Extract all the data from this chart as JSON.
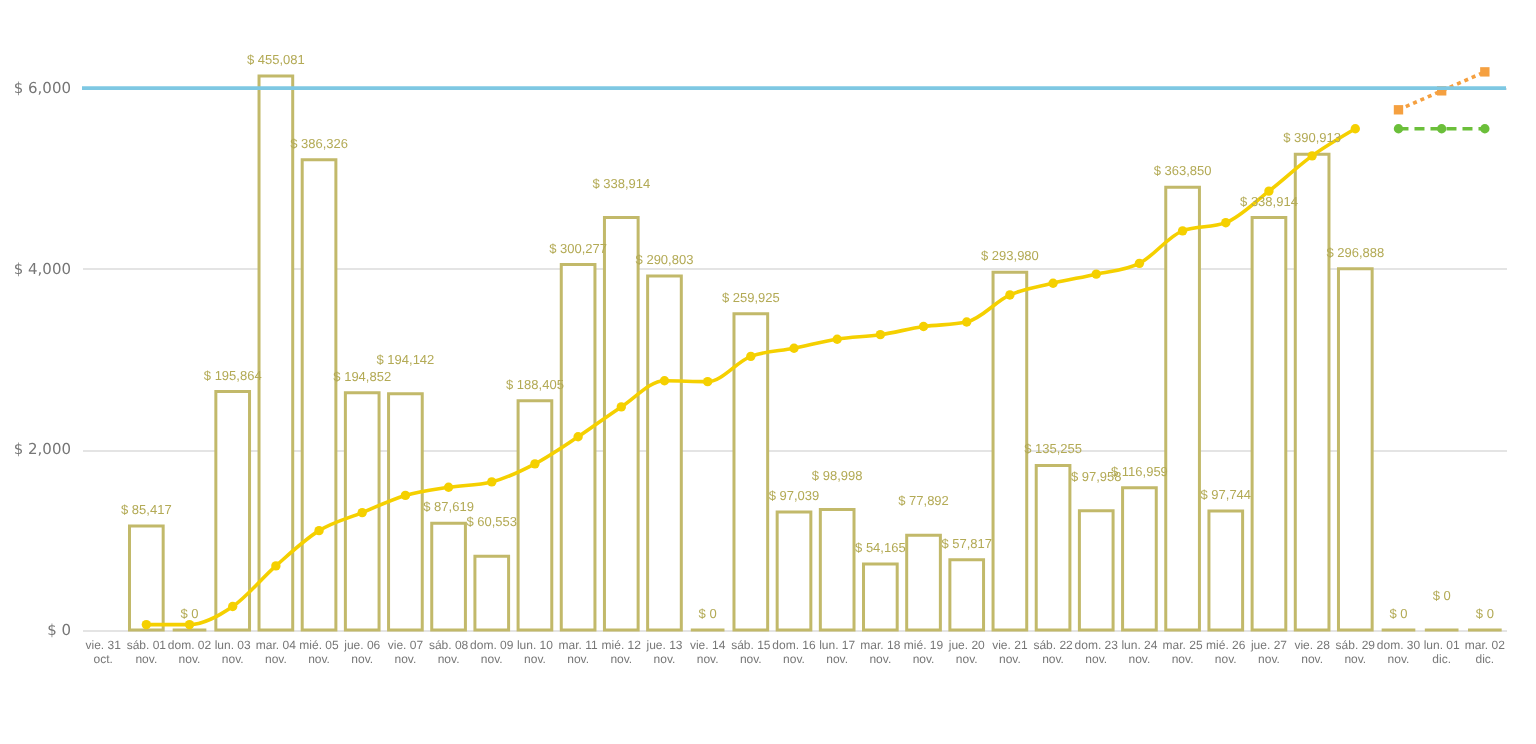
{
  "chart_data": {
    "type": "bar",
    "categories": [
      "vie. 31 oct.",
      "sáb. 01 nov.",
      "dom. 02 nov.",
      "lun. 03 nov.",
      "mar. 04 nov.",
      "mié. 05 nov.",
      "jue. 06 nov.",
      "vie. 07 nov.",
      "sáb. 08 nov.",
      "dom. 09 nov.",
      "lun. 10 nov.",
      "mar. 11 nov.",
      "mié. 12 nov.",
      "jue. 13 nov.",
      "vie. 14 nov.",
      "sáb. 15 nov.",
      "dom. 16 nov.",
      "lun. 17 nov.",
      "mar. 18 nov.",
      "mié. 19 nov.",
      "jue. 20 nov.",
      "vie. 21 nov.",
      "sáb. 22 nov.",
      "dom. 23 nov.",
      "lun. 24 nov.",
      "mar. 25 nov.",
      "mié. 26 nov.",
      "jue. 27 nov.",
      "vie. 28 nov.",
      "sáb. 29 nov.",
      "dom. 30 nov.",
      "lun. 01 dic.",
      "mar. 02 dic."
    ],
    "series": [
      {
        "axis": "y2",
        "color": "#c2b96a",
        "values": [
          null,
          85417,
          0,
          195864,
          455081,
          386326,
          194852,
          194142,
          87619,
          60553,
          188405,
          300277,
          338914,
          290803,
          0,
          259925,
          97039,
          98998,
          54165,
          77892,
          57817,
          293980,
          135255,
          97958,
          116959,
          363850,
          97744,
          338914,
          390913,
          296888,
          0,
          0,
          0
        ],
        "value_labels": [
          null,
          "$ 85,417",
          "$ 0",
          "$ 195,864",
          "$ 455,081",
          "$ 386,326",
          "$ 194,852",
          "$ 194,142",
          "$ 87,619",
          "$ 60,553",
          "$ 188,405",
          "$ 300,277",
          "$ 338,914",
          "$ 290,803",
          "$ 0",
          "$ 259,925",
          "$ 97,039",
          "$ 98,998",
          "$ 54,165",
          "$ 77,892",
          "$ 57,817",
          "$ 293,980",
          "$ 135,255",
          "$ 97,958",
          "$ 116,959",
          "$ 363,850",
          "$ 97,744",
          "$ 338,914",
          "$ 390,913",
          "$ 296,888",
          "$ 0",
          "$ 0",
          "$ 0"
        ]
      },
      {
        "type": "line",
        "color": "#f5d000",
        "marker": "circle",
        "line_style": "solid",
        "values": [
          null,
          60,
          60,
          260,
          710,
          1100,
          1300,
          1490,
          1580,
          1640,
          1840,
          2140,
          2470,
          2760,
          2750,
          3030,
          3120,
          3220,
          3270,
          3360,
          3410,
          3710,
          3840,
          3940,
          4060,
          4420,
          4510,
          4860,
          5250,
          5550,
          null,
          null,
          null
        ]
      },
      {
        "type": "line",
        "color": "#6bbf3a",
        "marker": "circle",
        "line_style": "dashed",
        "values": [
          null,
          null,
          null,
          null,
          null,
          null,
          null,
          null,
          null,
          null,
          null,
          null,
          null,
          null,
          null,
          null,
          null,
          null,
          null,
          null,
          null,
          null,
          null,
          null,
          null,
          null,
          null,
          null,
          null,
          null,
          5550,
          5550,
          5550
        ]
      },
      {
        "type": "line",
        "color": "#f5a040",
        "marker": "square",
        "line_style": "dotted",
        "values": [
          null,
          null,
          null,
          null,
          null,
          null,
          null,
          null,
          null,
          null,
          null,
          null,
          null,
          null,
          null,
          null,
          null,
          null,
          null,
          null,
          null,
          null,
          null,
          null,
          null,
          null,
          null,
          null,
          null,
          null,
          5760,
          5970,
          6180
        ]
      }
    ],
    "ylim": [
      0,
      6400
    ],
    "yticks": [
      {
        "value": 0,
        "label": "$ 0"
      },
      {
        "value": 2000,
        "label": "$ 2,000"
      },
      {
        "value": 4000,
        "label": "$ 4,000"
      },
      {
        "value": 6000,
        "label": "$ 6,000"
      }
    ],
    "y2lim": [
      0,
      474900
    ],
    "tick_labels": "xy",
    "grid": "y",
    "ref_lines": [
      {
        "axis": "y",
        "value": 6000,
        "color": "#7ec8e3"
      }
    ]
  }
}
